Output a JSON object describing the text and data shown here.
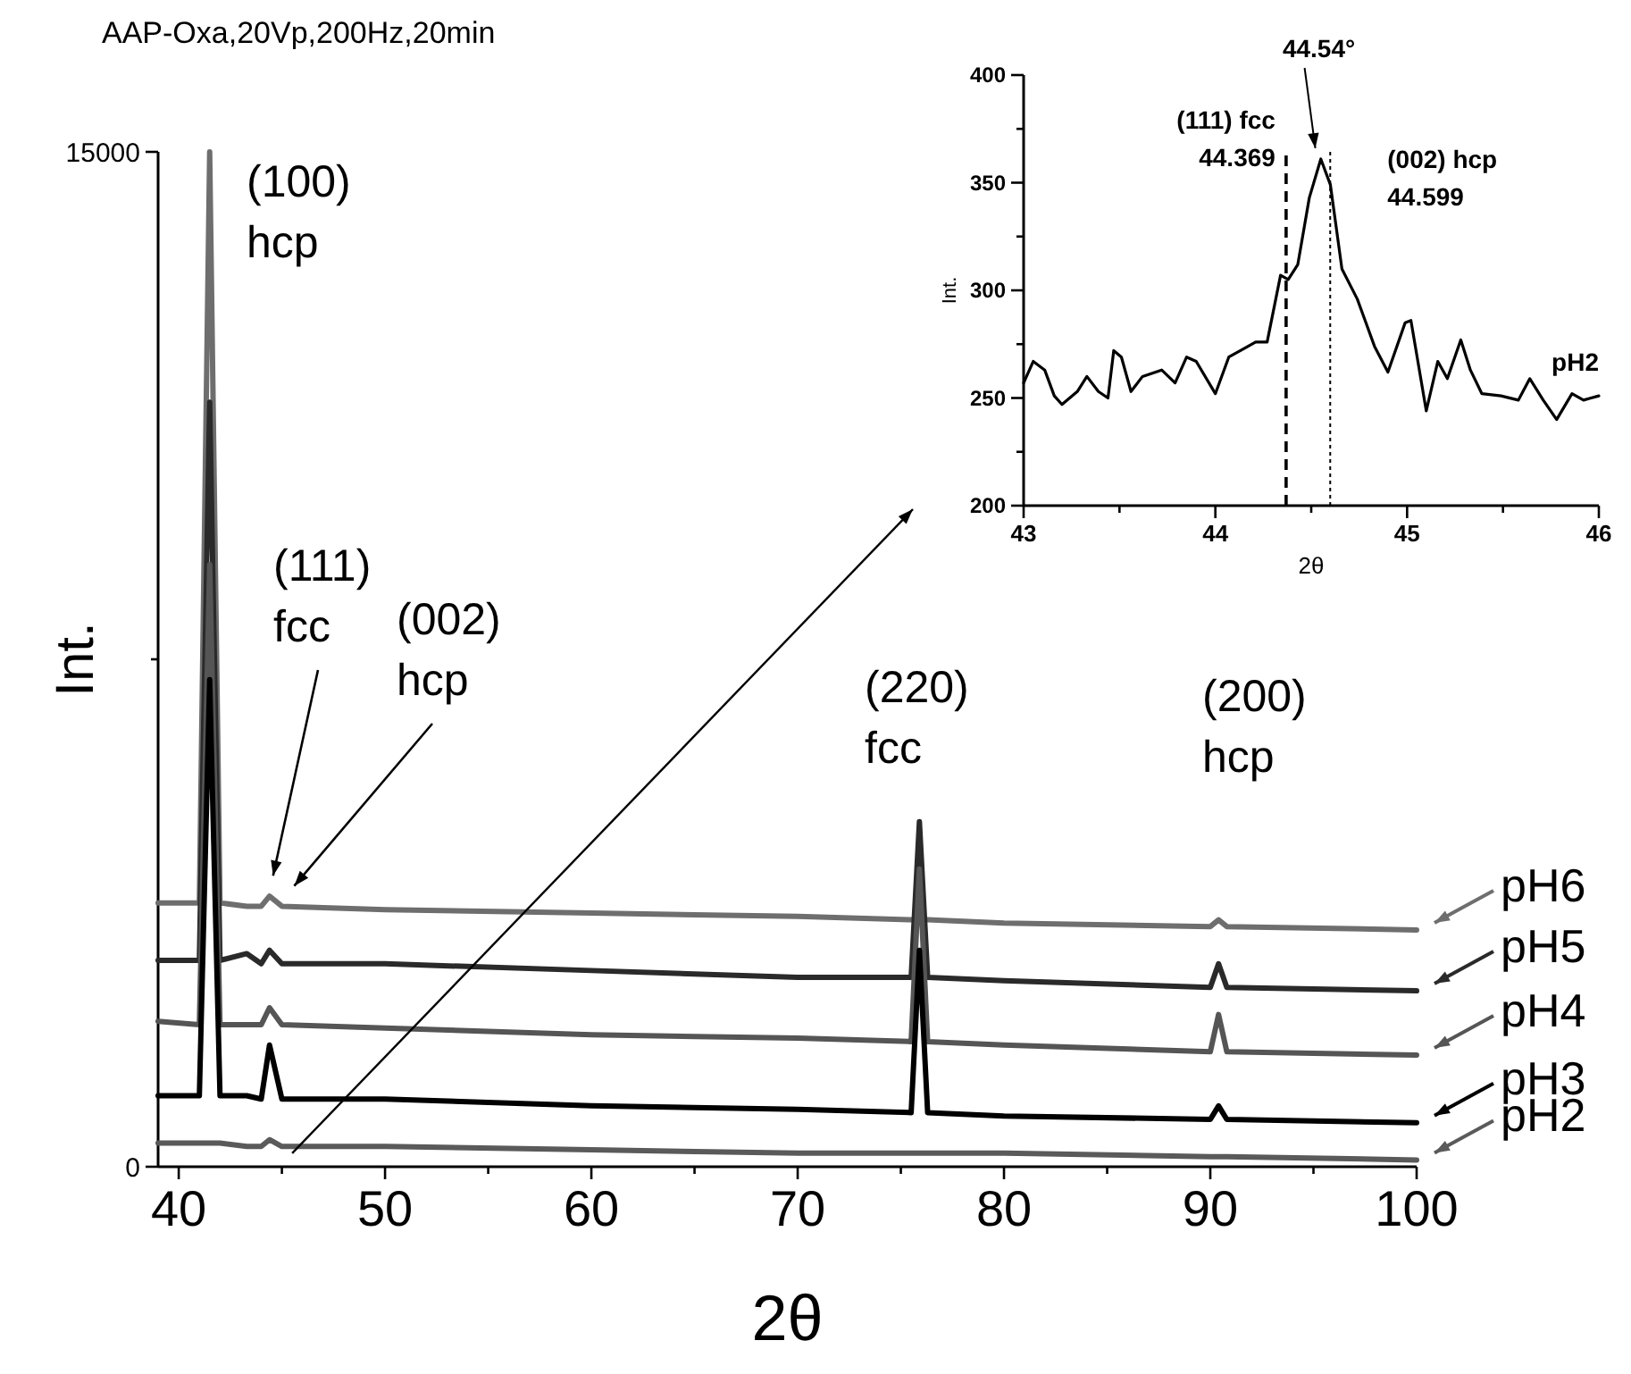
{
  "chart_data": [
    {
      "type": "line",
      "title": "AAP-Oxa,20Vp,200Hz,20min",
      "xlabel": "2θ",
      "ylabel": "Int.",
      "xlim": [
        39,
        100
      ],
      "xticks": [
        40,
        {
          "value": 45,
          "label": null
        },
        50,
        {
          "value": 55,
          "label": null
        },
        60,
        {
          "value": 65,
          "label": null
        },
        70,
        {
          "value": 75,
          "label": null
        },
        80,
        {
          "value": 85,
          "label": null
        },
        90,
        {
          "value": 95,
          "label": null
        },
        100
      ],
      "ylim": [
        0,
        15000
      ],
      "yticks": [
        0,
        {
          "value": 7500,
          "label": null
        },
        15000
      ],
      "x": [
        39,
        41,
        41.5,
        42,
        43.3,
        44,
        44.4,
        45,
        50,
        60,
        70,
        75.5,
        75.9,
        76.3,
        80,
        90,
        90.4,
        90.8,
        100
      ],
      "series": [
        {
          "name": "pH6",
          "color": "#6e6e6e",
          "values": [
            3900,
            3900,
            15000,
            3900,
            3850,
            3850,
            4000,
            3850,
            3800,
            3750,
            3700,
            3650,
            3650,
            3650,
            3600,
            3550,
            3650,
            3550,
            3500
          ]
        },
        {
          "name": "pH5",
          "color": "#2a2a2a",
          "values": [
            3050,
            3050,
            11300,
            3050,
            3150,
            3000,
            3200,
            3000,
            3000,
            2900,
            2800,
            2800,
            5100,
            2800,
            2750,
            2650,
            3000,
            2650,
            2600
          ]
        },
        {
          "name": "pH4",
          "color": "#555555",
          "values": [
            2150,
            2100,
            8900,
            2100,
            2100,
            2100,
            2350,
            2100,
            2050,
            1950,
            1900,
            1850,
            4400,
            1850,
            1800,
            1700,
            2250,
            1700,
            1650
          ]
        },
        {
          "name": "pH3",
          "color": "#000000",
          "values": [
            1050,
            1050,
            7200,
            1050,
            1050,
            1000,
            1800,
            1000,
            1000,
            900,
            850,
            800,
            3200,
            800,
            750,
            700,
            900,
            700,
            650
          ]
        },
        {
          "name": "pH2",
          "color": "#5a5a5a",
          "values": [
            350,
            350,
            350,
            350,
            300,
            300,
            400,
            300,
            300,
            250,
            200,
            200,
            200,
            200,
            200,
            150,
            150,
            150,
            100
          ]
        }
      ],
      "legend": "right",
      "annotations": [
        "(100)\nhcp",
        "(111)\nfcc",
        "(002)\nhcp",
        "(220)\nfcc",
        "(200)\nhcp"
      ]
    },
    {
      "type": "line",
      "xlabel": "2θ",
      "ylabel": "Int.",
      "xlim": [
        43,
        46
      ],
      "xticks": [
        43,
        {
          "value": 43.5,
          "label": null
        },
        44,
        {
          "value": 44.5,
          "label": null
        },
        45,
        {
          "value": 45.5,
          "label": null
        },
        46
      ],
      "ylim": [
        200,
        400
      ],
      "yticks": [
        200,
        {
          "value": 225,
          "label": null
        },
        250,
        {
          "value": 275,
          "label": null
        },
        300,
        {
          "value": 325,
          "label": null
        },
        350,
        {
          "value": 375,
          "label": null
        },
        400
      ],
      "series": [
        {
          "name": "pH2",
          "color": "#000000",
          "x": [
            43,
            43.05,
            43.11,
            43.16,
            43.2,
            43.28,
            43.33,
            43.39,
            43.44,
            43.47,
            43.51,
            43.56,
            43.62,
            43.72,
            43.79,
            43.85,
            43.9,
            44,
            44.07,
            44.15,
            44.21,
            44.27,
            44.34,
            44.38,
            44.43,
            44.49,
            44.55,
            44.6,
            44.66,
            44.74,
            44.83,
            44.9,
            44.99,
            45.02,
            45.1,
            45.16,
            45.21,
            45.28,
            45.33,
            45.39,
            45.49,
            45.58,
            45.64,
            45.71,
            45.78,
            45.86,
            45.92,
            46
          ],
          "values": [
            257,
            267,
            263,
            251,
            247,
            253,
            260,
            253,
            250,
            272,
            269,
            253,
            260,
            263,
            257,
            269,
            267,
            252,
            269,
            273,
            276,
            276,
            307,
            305,
            312,
            343,
            361,
            349,
            310,
            296,
            274,
            262,
            285,
            286,
            244,
            267,
            259,
            277,
            263,
            252,
            251,
            249,
            259,
            249,
            240,
            252,
            249,
            251
          ]
        }
      ],
      "ref_lines": [
        {
          "axis": "x",
          "value": 44.369,
          "label": "(111) fcc\n44.369",
          "line_style": "dashed"
        },
        {
          "axis": "x",
          "value": 44.599,
          "label": "(002) hcp\n44.599",
          "line_style": "dotted"
        }
      ],
      "annotations": [
        {
          "text": "44.54°",
          "x": 44.54,
          "y": 361
        }
      ]
    }
  ]
}
